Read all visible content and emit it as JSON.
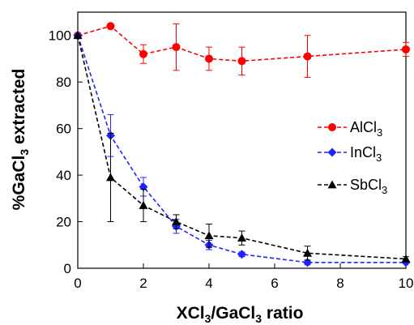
{
  "chart_data": {
    "type": "scatter",
    "xlabel": {
      "main": "XCl",
      "sub": "3",
      "mid": "/GaCl",
      "sub2": "3",
      "tail": " ratio"
    },
    "ylabel": {
      "main": "%GaCl",
      "sub": "3",
      "tail": " extracted"
    },
    "xlim": [
      0,
      10
    ],
    "ylim": [
      0,
      110
    ],
    "x_ticks": [
      "0",
      "2",
      "4",
      "6",
      "8",
      "10"
    ],
    "y_ticks": [
      "0",
      "20",
      "40",
      "60",
      "80",
      "100"
    ],
    "grid": false,
    "legend_position": "right",
    "series": [
      {
        "name": {
          "main": "AlCl",
          "sub": "3"
        },
        "color": "#ff0000",
        "marker": "circle",
        "line": "dashed",
        "x": [
          0,
          1,
          2,
          3,
          4,
          5,
          7,
          10
        ],
        "y": [
          100,
          104,
          92,
          95,
          90,
          89,
          91,
          94
        ],
        "err": [
          0,
          0,
          4,
          10,
          5,
          6,
          9,
          3
        ]
      },
      {
        "name": {
          "main": "InCl",
          "sub": "3"
        },
        "color": "#1f24ff",
        "marker": "diamond",
        "line": "dashed",
        "x": [
          0,
          1,
          2,
          3,
          4,
          5,
          7,
          10
        ],
        "y": [
          100,
          57,
          35,
          18,
          10,
          6,
          2.5,
          2.5
        ],
        "err": [
          0,
          9,
          4,
          3,
          2,
          1,
          1,
          0
        ]
      },
      {
        "name": {
          "main": "SbCl",
          "sub": "3"
        },
        "color": "#000000",
        "marker": "triangle",
        "line": "dashed",
        "x": [
          0,
          1,
          2,
          3,
          4,
          5,
          7,
          10
        ],
        "y": [
          100,
          39,
          27,
          20,
          14,
          13,
          6.5,
          4
        ],
        "err": [
          0,
          19,
          7,
          3,
          5,
          3,
          3,
          1
        ]
      }
    ]
  }
}
